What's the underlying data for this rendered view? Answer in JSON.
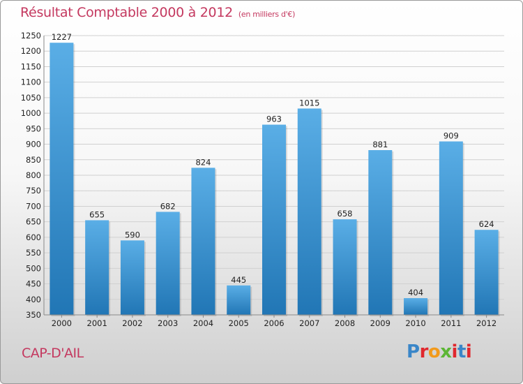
{
  "header": {
    "title": "Résultat Comptable 2000 à 2012",
    "unit": "(en milliers d'€)"
  },
  "commune": "CAP-D'AIL",
  "brand": {
    "name": "Proxiti",
    "letters": [
      "P",
      "r",
      "o",
      "x",
      "i",
      "t",
      "i"
    ],
    "colors": [
      "#3a86c8",
      "#e0282e",
      "#f29a1b",
      "#5cb635",
      "#e0282e",
      "#3a86c8",
      "#e0282e"
    ]
  },
  "colors": {
    "title": "#c4385f",
    "bar_top": "#5aaee6",
    "bar_bottom": "#2176b5"
  },
  "chart_data": {
    "type": "bar",
    "title": "Résultat Comptable 2000 à 2012",
    "subtitle": "(en milliers d'€)",
    "categories": [
      "2000",
      "2001",
      "2002",
      "2003",
      "2004",
      "2005",
      "2006",
      "2007",
      "2008",
      "2009",
      "2010",
      "2011",
      "2012"
    ],
    "values": [
      1227,
      655,
      590,
      682,
      824,
      445,
      963,
      1015,
      658,
      881,
      404,
      909,
      624
    ],
    "ylim": [
      350,
      1250
    ],
    "yticks": [
      350,
      400,
      450,
      500,
      550,
      600,
      650,
      700,
      750,
      800,
      850,
      900,
      950,
      1000,
      1050,
      1100,
      1150,
      1200,
      1250
    ],
    "grid": true,
    "xlabel": "",
    "ylabel": ""
  }
}
